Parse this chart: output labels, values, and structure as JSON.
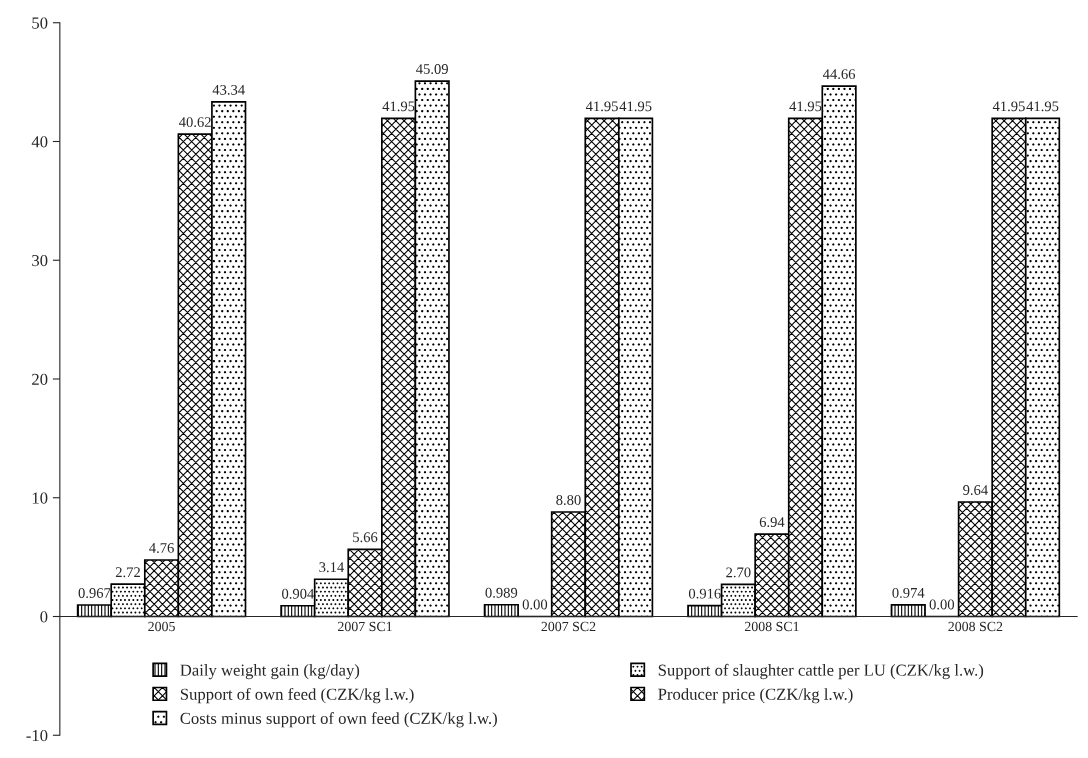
{
  "chart_data": {
    "type": "bar",
    "categories": [
      "2005",
      "2007 SC1",
      "2007 SC2",
      "2008 SC1",
      "2008 SC2"
    ],
    "series": [
      {
        "name": "Daily weight gain (kg/day)",
        "color": "#000000",
        "values": [
          0.967,
          0.904,
          0.989,
          0.916,
          0.974
        ],
        "value_labels": [
          "0.967",
          "0.904",
          "0.989",
          "0.916",
          "0.974"
        ]
      },
      {
        "name": "Support of slaughter cattle per LU (CZK/kg l.w.)",
        "color": "#000000",
        "values": [
          2.72,
          3.14,
          0.0,
          2.7,
          0.0
        ],
        "value_labels": [
          "2.72",
          "3.14",
          "0.00",
          "2.70",
          "0.00"
        ]
      },
      {
        "name": "Support of own feed (CZK/kg l.w.)",
        "color": "#000000",
        "values": [
          4.76,
          5.66,
          8.8,
          6.94,
          9.64
        ],
        "value_labels": [
          "4.76",
          "5.66",
          "8.80",
          "6.94",
          "9.64"
        ]
      },
      {
        "name": "Producer price (CZK/kg l.w.)",
        "color": "#000000",
        "values": [
          40.62,
          41.95,
          41.95,
          41.95,
          41.95
        ],
        "value_labels": [
          "40.62",
          "41.95",
          "41.95",
          "41.95",
          "41.95"
        ]
      },
      {
        "name": "Costs minus support of own feed (CZK/kg l.w.)",
        "color": "#000000",
        "values": [
          43.34,
          45.09,
          41.95,
          44.66,
          41.95
        ],
        "value_labels": [
          "43.34",
          "45.09",
          "41.95",
          "44.66",
          "41.95"
        ]
      }
    ],
    "ylim": [
      -10,
      50
    ],
    "yticks": [
      -10,
      0,
      10,
      20,
      30,
      40,
      50
    ],
    "legend": "bottom",
    "grid": false
  }
}
